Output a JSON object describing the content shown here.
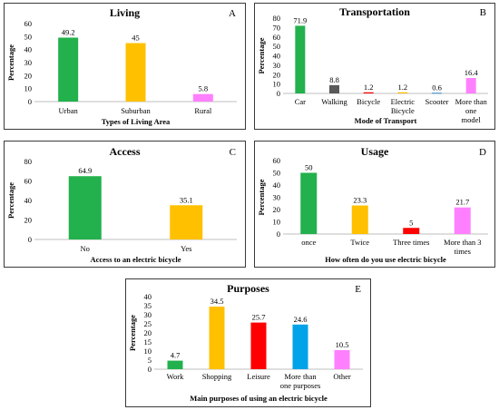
{
  "chart_data": [
    {
      "type": "bar",
      "panel": "A",
      "title": "Living",
      "xlabel": "Types of Living Area",
      "ylabel": "Percentage",
      "categories": [
        "Urban",
        "Suburban",
        "Rural"
      ],
      "values": [
        49.2,
        45,
        5.8
      ],
      "value_labels": [
        "49.2",
        "45",
        "5.8"
      ],
      "colors": [
        "#22b14c",
        "#ffc000",
        "#ff80ff"
      ],
      "ylim": [
        0,
        60
      ],
      "yticks": [
        0,
        10,
        20,
        30,
        40,
        50,
        60
      ],
      "grid": false
    },
    {
      "type": "bar",
      "panel": "B",
      "title": "Transportation",
      "xlabel": "Mode of Transport",
      "ylabel": "Percentage",
      "categories": [
        [
          "Car"
        ],
        [
          "Walking"
        ],
        [
          "Bicycle"
        ],
        [
          "Electric",
          "Bicycle"
        ],
        [
          "Scooter"
        ],
        [
          "More than",
          "one",
          "model"
        ]
      ],
      "values": [
        71.9,
        8.8,
        1.2,
        1.2,
        0.6,
        16.4
      ],
      "value_labels": [
        "71.9",
        "8.8",
        "1.2",
        "1.2",
        "0.6",
        "16.4"
      ],
      "colors": [
        "#22b14c",
        "#595959",
        "#ff0000",
        "#ffc000",
        "#0070c0",
        "#ff80ff"
      ],
      "ylim": [
        0,
        80
      ],
      "yticks": [
        0,
        10,
        20,
        30,
        40,
        50,
        60,
        70,
        80
      ],
      "grid": false
    },
    {
      "type": "bar",
      "panel": "C",
      "title": "Access",
      "xlabel": "Access to an electric bicycle",
      "ylabel": "Percentage",
      "categories": [
        "No",
        "Yes"
      ],
      "values": [
        64.9,
        35.1
      ],
      "value_labels": [
        "64.9",
        "35.1"
      ],
      "colors": [
        "#22b14c",
        "#ffc000"
      ],
      "ylim": [
        0,
        80
      ],
      "yticks": [
        0,
        20,
        40,
        60,
        80
      ],
      "grid": false
    },
    {
      "type": "bar",
      "panel": "D",
      "title": "Usage",
      "xlabel": "How often do you use electric bicycle",
      "ylabel": "Percentage",
      "categories": [
        [
          "once"
        ],
        [
          "Twice"
        ],
        [
          "Three times"
        ],
        [
          "More than 3",
          "times"
        ]
      ],
      "values": [
        50,
        23.3,
        5,
        21.7
      ],
      "value_labels": [
        "50",
        "23.3",
        "5",
        "21.7"
      ],
      "colors": [
        "#22b14c",
        "#ffc000",
        "#ff0000",
        "#ff80ff"
      ],
      "ylim": [
        0,
        60
      ],
      "yticks": [
        0,
        10,
        20,
        30,
        40,
        50,
        60
      ],
      "grid": false
    },
    {
      "type": "bar",
      "panel": "E",
      "title": "Purposes",
      "xlabel": "Main purposes of using an electric bicycle",
      "ylabel": "Percentage",
      "categories": [
        [
          "Work"
        ],
        [
          "Shopping"
        ],
        [
          "Leisure"
        ],
        [
          "More than",
          "one purposes"
        ],
        [
          "Other"
        ]
      ],
      "values": [
        4.7,
        34.5,
        25.7,
        24.6,
        10.5
      ],
      "value_labels": [
        "4.7",
        "34.5",
        "25.7",
        "24.6",
        "10.5"
      ],
      "colors": [
        "#22b14c",
        "#ffc000",
        "#ff0000",
        "#00a2e8",
        "#ff80ff"
      ],
      "ylim": [
        0,
        40
      ],
      "yticks": [
        0,
        5,
        10,
        15,
        20,
        25,
        30,
        35,
        40
      ],
      "grid": false
    }
  ]
}
